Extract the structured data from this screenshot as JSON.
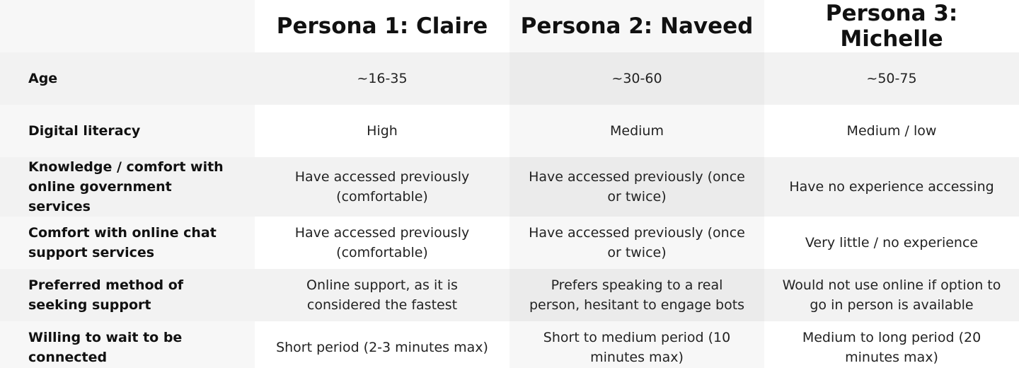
{
  "headers": [
    "",
    "Persona 1: Claire",
    "Persona 2: Naveed",
    "Persona 3: Michelle"
  ],
  "rows": [
    {
      "label": "Age",
      "values": [
        "~16-35",
        "~30-60",
        "~50-75"
      ]
    },
    {
      "label": "Digital literacy",
      "values": [
        "High",
        "Medium",
        "Medium / low"
      ]
    },
    {
      "label": "Knowledge / comfort with online government services",
      "values": [
        "Have accessed previously (comfortable)",
        "Have accessed previously (once or twice)",
        "Have no experience accessing"
      ]
    },
    {
      "label": "Comfort with online chat support services",
      "values": [
        "Have accessed previously (comfortable)",
        "Have accessed previously (once or twice)",
        "Very little / no experience"
      ]
    },
    {
      "label": "Preferred method of seeking support",
      "values": [
        "Online support, as it is considered the fastest",
        "Prefers speaking to a real person, hesitant to engage bots",
        "Would not use online if option to go in person is available"
      ]
    },
    {
      "label": "Willing to wait to be connected",
      "values": [
        "Short period (2-3 minutes max)",
        "Short to medium period (10 minutes max)",
        "Medium to long period (20 minutes max)"
      ]
    }
  ]
}
